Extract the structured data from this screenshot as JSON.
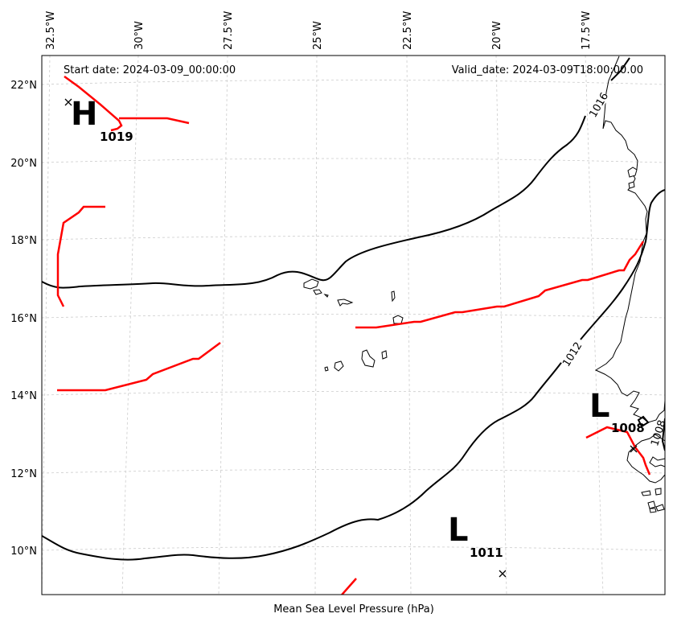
{
  "map": {
    "start_date": "Start date: 2024-03-09_00:00:00",
    "valid_date": "Valid_date: 2024-03-09T18:00:00.00",
    "caption": "Mean Sea Level Pressure (hPa)",
    "lon_labels": [
      "32.5°W",
      "30°W",
      "27.5°W",
      "25°W",
      "22.5°W",
      "20°W",
      "17.5°W"
    ],
    "lat_labels": [
      "22°N",
      "20°N",
      "18°N",
      "16°N",
      "14°N",
      "12°N",
      "10°N"
    ],
    "pressure_centers": [
      {
        "type": "H",
        "value": "1019"
      },
      {
        "type": "L",
        "value": "1008"
      },
      {
        "type": "L",
        "value": "1011"
      }
    ],
    "isobar_labels": [
      "1016",
      "1012",
      "1008"
    ],
    "colors": {
      "isobar": "#000000",
      "front": "#ff0000",
      "grid": "#cccccc",
      "land": "#ffffff"
    }
  }
}
